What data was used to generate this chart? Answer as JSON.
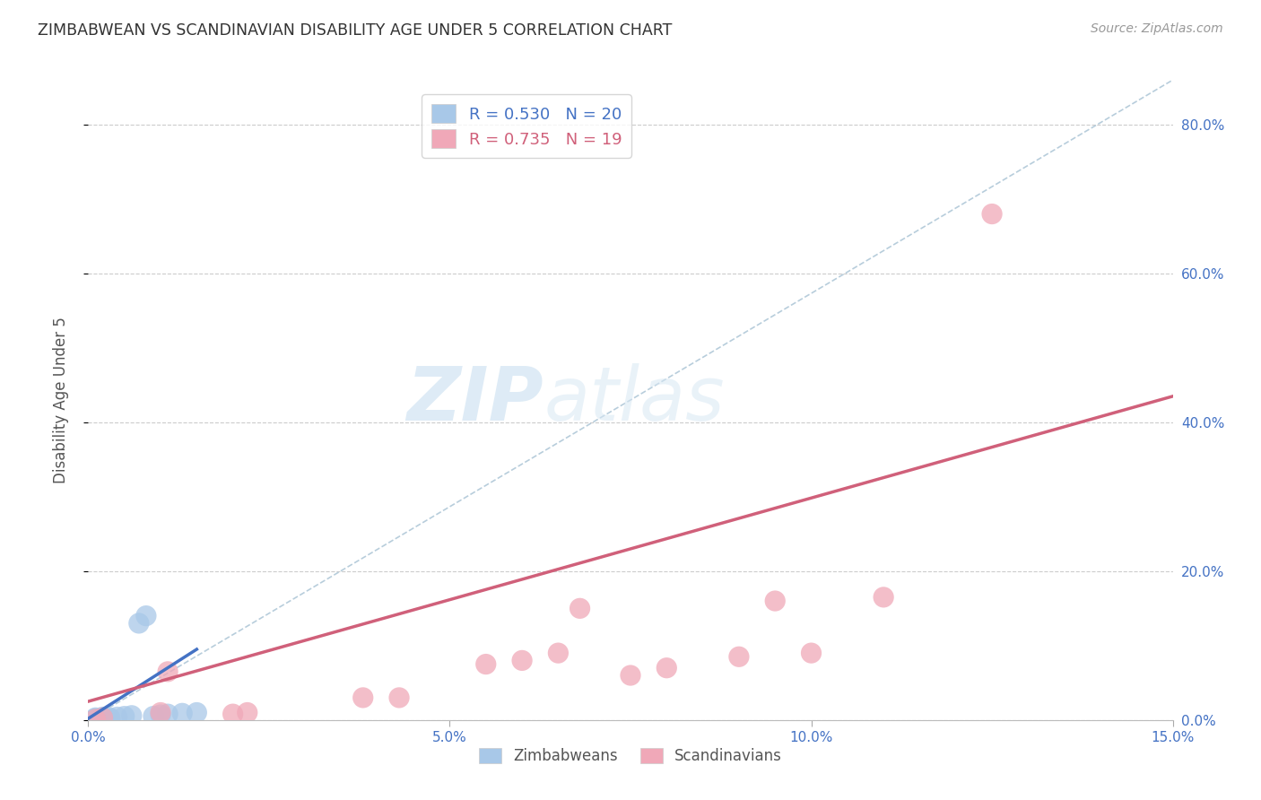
{
  "title": "ZIMBABWEAN VS SCANDINAVIAN DISABILITY AGE UNDER 5 CORRELATION CHART",
  "source": "Source: ZipAtlas.com",
  "ylabel": "Disability Age Under 5",
  "xlim": [
    0.0,
    0.15
  ],
  "ylim": [
    0.0,
    0.86
  ],
  "xticks": [
    0.0,
    0.05,
    0.1,
    0.15
  ],
  "xticklabels": [
    "0.0%",
    "5.0%",
    "10.0%",
    "15.0%"
  ],
  "yticks": [
    0.0,
    0.2,
    0.4,
    0.6,
    0.8
  ],
  "yticklabels": [
    "0.0%",
    "20.0%",
    "40.0%",
    "60.0%",
    "80.0%"
  ],
  "zimbabwe_R": 0.53,
  "zimbabwe_N": 20,
  "scandinavian_R": 0.735,
  "scandinavian_N": 19,
  "zimbabwe_color": "#a8c8e8",
  "scandinavian_color": "#f0a8b8",
  "zimbabwe_line_color": "#4472c4",
  "scandinavian_line_color": "#d0607a",
  "diagonal_color": "#b0c8d8",
  "watermark_zip": "ZIP",
  "watermark_atlas": "atlas",
  "zimbabwe_x": [
    0.001,
    0.001,
    0.001,
    0.001,
    0.002,
    0.002,
    0.002,
    0.002,
    0.003,
    0.003,
    0.004,
    0.005,
    0.006,
    0.007,
    0.008,
    0.009,
    0.01,
    0.011,
    0.013,
    0.015
  ],
  "zimbabwe_y": [
    0.001,
    0.001,
    0.002,
    0.003,
    0.001,
    0.002,
    0.003,
    0.004,
    0.002,
    0.003,
    0.004,
    0.005,
    0.006,
    0.13,
    0.14,
    0.005,
    0.007,
    0.008,
    0.009,
    0.01
  ],
  "scandinavian_x": [
    0.001,
    0.002,
    0.01,
    0.011,
    0.02,
    0.022,
    0.038,
    0.043,
    0.055,
    0.06,
    0.065,
    0.068,
    0.075,
    0.08,
    0.09,
    0.095,
    0.1,
    0.11,
    0.125
  ],
  "scandinavian_y": [
    0.001,
    0.003,
    0.01,
    0.065,
    0.008,
    0.01,
    0.03,
    0.03,
    0.075,
    0.08,
    0.09,
    0.15,
    0.06,
    0.07,
    0.085,
    0.16,
    0.09,
    0.165,
    0.68
  ],
  "zimb_line_x": [
    0.0,
    0.015
  ],
  "zimb_line_y": [
    0.002,
    0.095
  ],
  "scan_line_x": [
    0.0,
    0.15
  ],
  "scan_line_y": [
    0.025,
    0.435
  ]
}
